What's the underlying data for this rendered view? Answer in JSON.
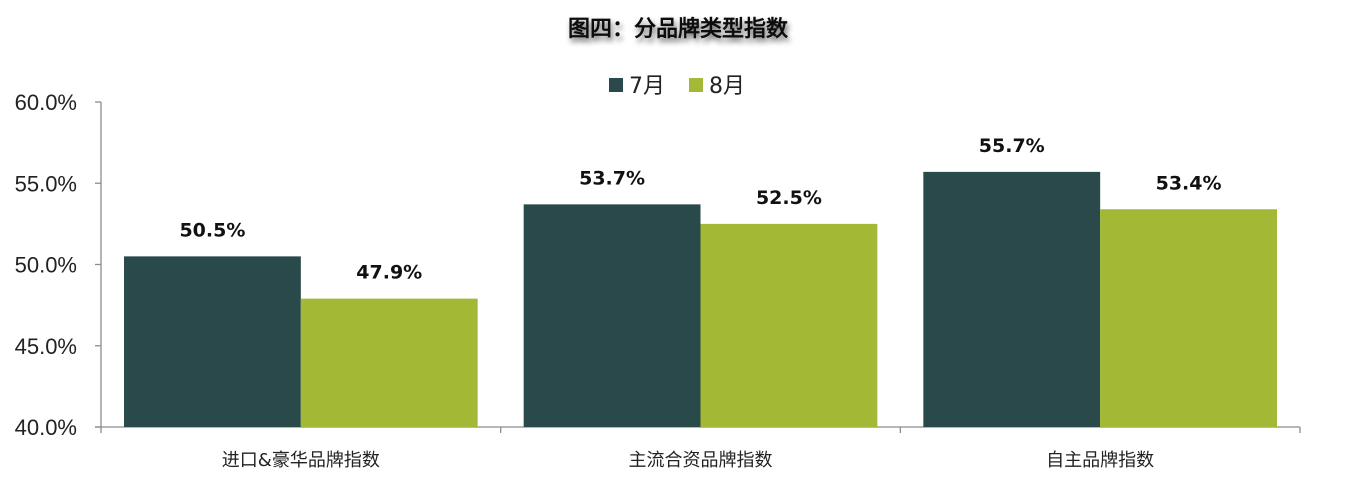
{
  "chart_data": {
    "type": "bar",
    "title": "图四：分品牌类型指数",
    "categories": [
      "进口&豪华品牌指数",
      "主流合资品牌指数",
      "自主品牌指数"
    ],
    "series": [
      {
        "name": "7月",
        "color": "#29494a",
        "values": [
          50.5,
          53.7,
          55.7
        ],
        "labels": [
          "50.5%",
          "53.7%",
          "55.7%"
        ]
      },
      {
        "name": "8月",
        "color": "#a3b935",
        "values": [
          47.9,
          52.5,
          53.4
        ],
        "labels": [
          "47.9%",
          "52.5%",
          "53.4%"
        ]
      }
    ],
    "ylim": [
      40,
      60
    ],
    "yticks": [
      "40.0%",
      "45.0%",
      "50.0%",
      "55.0%",
      "60.0%"
    ],
    "ytick_values": [
      40,
      45,
      50,
      55,
      60
    ],
    "xlabel": "",
    "ylabel": "",
    "legend": "top-center",
    "grid": false
  }
}
